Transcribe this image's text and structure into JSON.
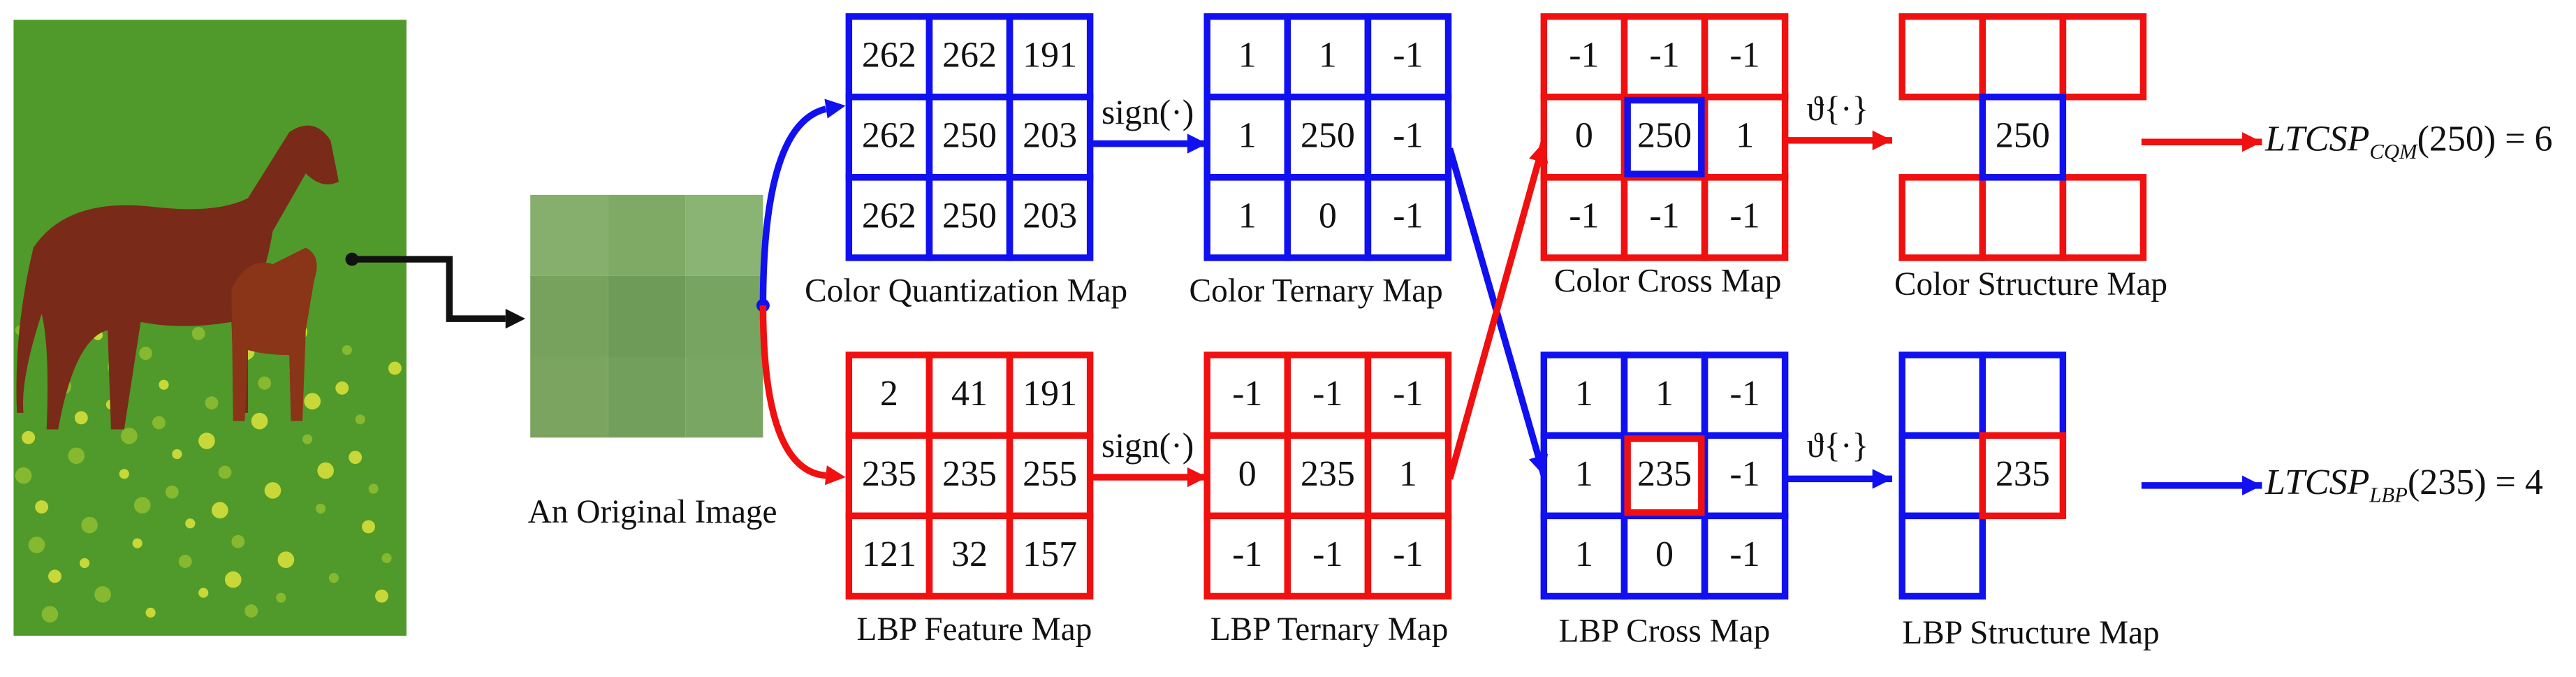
{
  "original_image": {
    "label": "An Original Image"
  },
  "color_quantization_map": {
    "label": "Color Quantization Map",
    "cells": [
      [
        "262",
        "262",
        "191"
      ],
      [
        "262",
        "250",
        "203"
      ],
      [
        "262",
        "250",
        "203"
      ]
    ]
  },
  "color_ternary_map": {
    "label": "Color Ternary Map",
    "cells": [
      [
        "1",
        "1",
        "-1"
      ],
      [
        "1",
        "250",
        "-1"
      ],
      [
        "1",
        "0",
        "-1"
      ]
    ]
  },
  "color_cross_map": {
    "label": "Color Cross Map",
    "cells": [
      [
        "-1",
        "-1",
        "-1"
      ],
      [
        "0",
        "250",
        "1"
      ],
      [
        "-1",
        "-1",
        "-1"
      ]
    ]
  },
  "color_structure_map": {
    "label": "Color Structure Map",
    "center": "250"
  },
  "lbp_feature_map": {
    "label": "LBP Feature Map",
    "cells": [
      [
        "2",
        "41",
        "191"
      ],
      [
        "235",
        "235",
        "255"
      ],
      [
        "121",
        "32",
        "157"
      ]
    ]
  },
  "lbp_ternary_map": {
    "label": "LBP Ternary Map",
    "cells": [
      [
        "-1",
        "-1",
        "-1"
      ],
      [
        "0",
        "235",
        "1"
      ],
      [
        "-1",
        "-1",
        "-1"
      ]
    ]
  },
  "lbp_cross_map": {
    "label": "LBP Cross Map",
    "cells": [
      [
        "1",
        "1",
        "-1"
      ],
      [
        "1",
        "235",
        "-1"
      ],
      [
        "1",
        "0",
        "-1"
      ]
    ]
  },
  "lbp_structure_map": {
    "label": "LBP Structure Map",
    "center": "235"
  },
  "operators": {
    "top_sign": "sign(·)",
    "bottom_sign": "sign(·)",
    "top_theta": "ϑ{·}",
    "bottom_theta": "ϑ{·}"
  },
  "results": [
    {
      "name": "LTCSP",
      "subscript": "CQM",
      "value": "(250) = 6"
    },
    {
      "name": "LTCSP",
      "subscript": "LBP",
      "value": "(235) = 4"
    }
  ]
}
